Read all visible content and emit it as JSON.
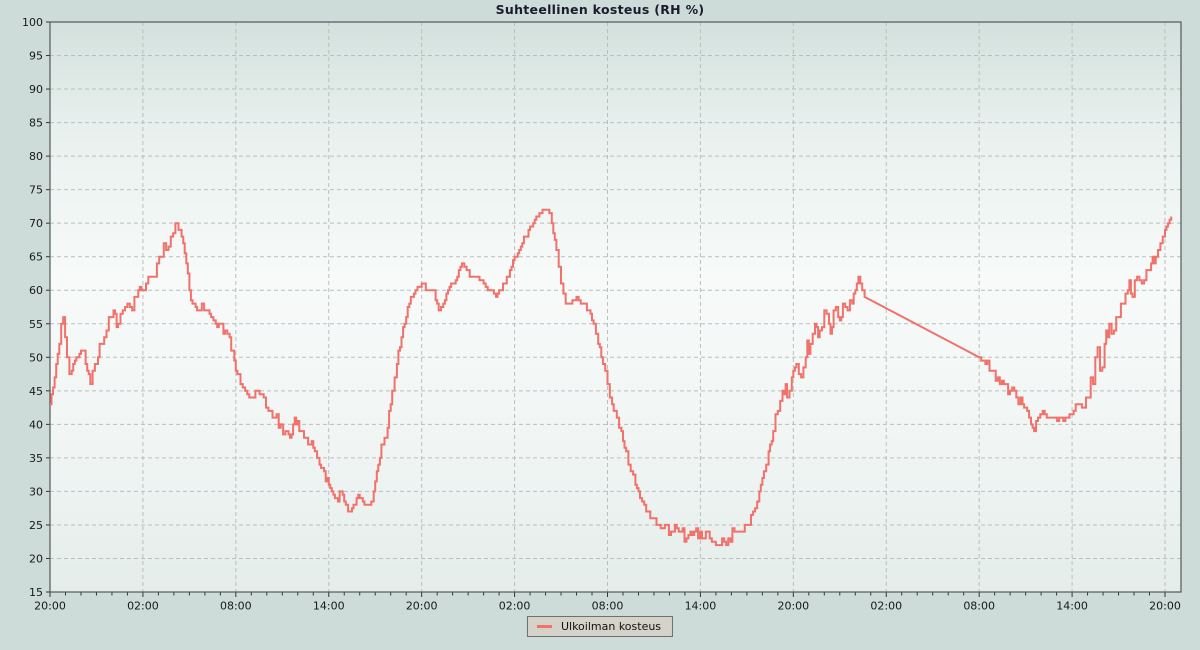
{
  "title": "Suhteellinen kosteus (RH %)",
  "legend": {
    "position": "bottom-center",
    "items": [
      {
        "label": "Ulkoilman kosteus",
        "color": "#f1716b"
      }
    ]
  },
  "colors": {
    "page_background": "#cddcd8",
    "plot_gradient_top": "#d3e1dd",
    "plot_gradient_middle": "#f7faf9",
    "plot_gradient_bottom": "#e4edea",
    "grid": "#b9bfbc",
    "plot_border": "#55565a",
    "tick": "#333333",
    "tick_text": "#17181c",
    "series_line": "#f1716b",
    "title_text": "#1b1b2f",
    "legend_background": "#d5d2ca"
  },
  "chart_data": {
    "type": "line",
    "title": "Suhteellinen kosteus (RH %)",
    "grid": true,
    "legend_position": "bottom-center",
    "x_axis": {
      "start_label": "20:00",
      "span_hours": 72,
      "major_tick_interval_hours": 6,
      "minor_tick_interval_hours": 1,
      "tick_labels": [
        "20:00",
        "02:00",
        "08:00",
        "14:00",
        "20:00",
        "02:00",
        "08:00",
        "14:00",
        "20:00",
        "02:00",
        "08:00",
        "14:00",
        "20:00"
      ]
    },
    "y_axis": {
      "min": 15,
      "max": 100,
      "tick_step": 5
    },
    "points_format": "[hours_from_start_20:00, rh_percent, estimated_noise_band]",
    "gap_segments": [
      [
        52.6,
        60.0
      ]
    ],
    "series": [
      {
        "name": "Ulkoilman kosteus",
        "color": "#f1716b",
        "points": [
          [
            0,
            43,
            0.3
          ],
          [
            0.3,
            47,
            1
          ],
          [
            0.6,
            52,
            1.5
          ],
          [
            0.85,
            56,
            1
          ],
          [
            1.1,
            50,
            1.5
          ],
          [
            1.4,
            48,
            1.5
          ],
          [
            1.7,
            50,
            1.5
          ],
          [
            2,
            51,
            1.5
          ],
          [
            2.3,
            49,
            1.5
          ],
          [
            2.6,
            46,
            1
          ],
          [
            2.9,
            49,
            1.5
          ],
          [
            3.2,
            52,
            1.5
          ],
          [
            3.5,
            53,
            1.5
          ],
          [
            3.8,
            56,
            1.5
          ],
          [
            4.1,
            57,
            2
          ],
          [
            4.4,
            55,
            1.5
          ],
          [
            4.7,
            57,
            1.5
          ],
          [
            5,
            58,
            1.5
          ],
          [
            5.3,
            57,
            1.5
          ],
          [
            5.6,
            59,
            1.5
          ],
          [
            5.9,
            60,
            1.2
          ],
          [
            6.2,
            61,
            1.5
          ],
          [
            6.5,
            62,
            1.5
          ],
          [
            6.9,
            64,
            1.5
          ],
          [
            7.2,
            65,
            1.5
          ],
          [
            7.5,
            66,
            1.5
          ],
          [
            7.8,
            68,
            1
          ],
          [
            8.1,
            70,
            0.6
          ],
          [
            8.4,
            69,
            0.8
          ],
          [
            8.6,
            67,
            0.8
          ],
          [
            8.8,
            64,
            0.6
          ],
          [
            9,
            60,
            0.5
          ],
          [
            9.2,
            58,
            0.5
          ],
          [
            9.5,
            57,
            0.5
          ],
          [
            9.8,
            58,
            0.5
          ],
          [
            10.1,
            57,
            0.6
          ],
          [
            10.4,
            56,
            0.8
          ],
          [
            10.7,
            55,
            0.8
          ],
          [
            11,
            55,
            0.8
          ],
          [
            11.3,
            54,
            0.8
          ],
          [
            11.6,
            53,
            0.8
          ],
          [
            11.8,
            51,
            1
          ],
          [
            12,
            48,
            1
          ],
          [
            12.3,
            46,
            0.8
          ],
          [
            12.6,
            45,
            0.8
          ],
          [
            13,
            44,
            0.6
          ],
          [
            13.4,
            45,
            0.6
          ],
          [
            13.8,
            44,
            0.6
          ],
          [
            14.1,
            42,
            0.8
          ],
          [
            14.5,
            41,
            1
          ],
          [
            14.9,
            40,
            1
          ],
          [
            15.2,
            39,
            1
          ],
          [
            15.5,
            38,
            0.8
          ],
          [
            15.8,
            41,
            0.5
          ],
          [
            16.1,
            39,
            0.8
          ],
          [
            16.4,
            38,
            0.8
          ],
          [
            16.8,
            37,
            0.8
          ],
          [
            17.1,
            36,
            0.8
          ],
          [
            17.4,
            34,
            0.8
          ],
          [
            17.7,
            33,
            0.8
          ],
          [
            18,
            31,
            0.6
          ],
          [
            18.2,
            30,
            0.5
          ],
          [
            18.5,
            29,
            0.8
          ],
          [
            18.8,
            30,
            0.8
          ],
          [
            19.1,
            28,
            0.8
          ],
          [
            19.4,
            27,
            0.6
          ],
          [
            19.7,
            28,
            0.8
          ],
          [
            20,
            29,
            1
          ],
          [
            20.3,
            28,
            0.8
          ],
          [
            20.6,
            28,
            0.6
          ],
          [
            20.9,
            30,
            0.5
          ],
          [
            21.1,
            33,
            0.5
          ],
          [
            21.3,
            35,
            0.6
          ],
          [
            21.5,
            37,
            1
          ],
          [
            21.7,
            38,
            1.2
          ],
          [
            21.9,
            42,
            0.8
          ],
          [
            22.1,
            45,
            0.8
          ],
          [
            22.4,
            49,
            0.8
          ],
          [
            22.7,
            53,
            0.8
          ],
          [
            23,
            56,
            0.8
          ],
          [
            23.3,
            59,
            0.6
          ],
          [
            23.6,
            60,
            0.5
          ],
          [
            24,
            61,
            0.5
          ],
          [
            24.4,
            60,
            0.5
          ],
          [
            24.8,
            60,
            0.5
          ],
          [
            25.1,
            57,
            0.5
          ],
          [
            25.4,
            58,
            0.5
          ],
          [
            25.7,
            60,
            0.5
          ],
          [
            26,
            61,
            0.4
          ],
          [
            26.3,
            62,
            0.4
          ],
          [
            26.6,
            64,
            0.4
          ],
          [
            26.9,
            63,
            0.4
          ],
          [
            27.2,
            62,
            0.4
          ],
          [
            27.6,
            62,
            0.4
          ],
          [
            28,
            61,
            0.4
          ],
          [
            28.4,
            60,
            0.4
          ],
          [
            28.8,
            59,
            0.4
          ],
          [
            29.1,
            60,
            0.4
          ],
          [
            29.4,
            61,
            0.4
          ],
          [
            29.7,
            63,
            0.4
          ],
          [
            30,
            65,
            0.4
          ],
          [
            30.3,
            66,
            0.4
          ],
          [
            30.6,
            68,
            0.4
          ],
          [
            30.9,
            69,
            0.4
          ],
          [
            31.2,
            70,
            0.3
          ],
          [
            31.5,
            71,
            0.3
          ],
          [
            31.8,
            72,
            0.3
          ],
          [
            32.1,
            72,
            0.3
          ],
          [
            32.4,
            70,
            0.3
          ],
          [
            32.7,
            66,
            0.3
          ],
          [
            33,
            61,
            0.3
          ],
          [
            33.3,
            58,
            0.4
          ],
          [
            33.6,
            58,
            0.4
          ],
          [
            34,
            59,
            0.4
          ],
          [
            34.4,
            58,
            0.4
          ],
          [
            34.8,
            57,
            0.4
          ],
          [
            35.1,
            55,
            0.4
          ],
          [
            35.4,
            52,
            0.5
          ],
          [
            35.7,
            49,
            0.5
          ],
          [
            36,
            46,
            0.5
          ],
          [
            36.3,
            43,
            0.5
          ],
          [
            36.6,
            41,
            0.6
          ],
          [
            36.9,
            39,
            0.8
          ],
          [
            37.2,
            36,
            0.8
          ],
          [
            37.5,
            33,
            0.8
          ],
          [
            37.8,
            31,
            0.8
          ],
          [
            38.1,
            29,
            0.8
          ],
          [
            38.5,
            27,
            0.8
          ],
          [
            38.9,
            26,
            0.8
          ],
          [
            39.3,
            25,
            0.8
          ],
          [
            39.7,
            25,
            0.8
          ],
          [
            40.1,
            24,
            0.8
          ],
          [
            40.6,
            24,
            1
          ],
          [
            41.1,
            23,
            1
          ],
          [
            41.6,
            24,
            1
          ],
          [
            42.1,
            23,
            1
          ],
          [
            42.6,
            23,
            1
          ],
          [
            43,
            22,
            0.8
          ],
          [
            43.4,
            23,
            1
          ],
          [
            43.8,
            23,
            1
          ],
          [
            44.2,
            24,
            0.8
          ],
          [
            44.6,
            24,
            0.8
          ],
          [
            45,
            25,
            0.6
          ],
          [
            45.4,
            27,
            0.6
          ],
          [
            45.8,
            30,
            0.6
          ],
          [
            46.1,
            33,
            0.8
          ],
          [
            46.4,
            36,
            0.8
          ],
          [
            46.7,
            39,
            1
          ],
          [
            47,
            42,
            1.2
          ],
          [
            47.3,
            45,
            1.5
          ],
          [
            47.6,
            44,
            1.5
          ],
          [
            47.9,
            47,
            1.5
          ],
          [
            48.2,
            49,
            1.5
          ],
          [
            48.5,
            47,
            1.5
          ],
          [
            48.8,
            50,
            1.8
          ],
          [
            49.1,
            52,
            1.8
          ],
          [
            49.4,
            55,
            2
          ],
          [
            49.7,
            54,
            2
          ],
          [
            50,
            57,
            2
          ],
          [
            50.3,
            55,
            2.2
          ],
          [
            50.6,
            57,
            2.2
          ],
          [
            50.9,
            56,
            2.2
          ],
          [
            51.2,
            58,
            1.8
          ],
          [
            51.5,
            57,
            1.8
          ],
          [
            51.8,
            58,
            1.5
          ],
          [
            52,
            60,
            1
          ],
          [
            52.2,
            62,
            0.6
          ],
          [
            52.45,
            60,
            0.5
          ],
          [
            52.6,
            59,
            0.2
          ],
          [
            60,
            50,
            0.2
          ],
          [
            60.4,
            49,
            1
          ],
          [
            60.8,
            48,
            1
          ],
          [
            61.2,
            47,
            1
          ],
          [
            61.6,
            46,
            1
          ],
          [
            62,
            45,
            0.8
          ],
          [
            62.4,
            44,
            0.8
          ],
          [
            62.8,
            43,
            0.8
          ],
          [
            63.1,
            42,
            0.6
          ],
          [
            63.35,
            40,
            0.4
          ],
          [
            63.55,
            39,
            0.3
          ],
          [
            63.8,
            41,
            0.5
          ],
          [
            64.1,
            42,
            0.5
          ],
          [
            64.5,
            41,
            0.5
          ],
          [
            64.9,
            41,
            0.5
          ],
          [
            65.3,
            41,
            0.5
          ],
          [
            65.7,
            41,
            0.5
          ],
          [
            66.1,
            42,
            0.5
          ],
          [
            66.5,
            43,
            0.8
          ],
          [
            66.9,
            44,
            1.5
          ],
          [
            67.2,
            47,
            2.5
          ],
          [
            67.5,
            50,
            3
          ],
          [
            67.8,
            48,
            3
          ],
          [
            68.1,
            52,
            3
          ],
          [
            68.4,
            55,
            2.5
          ],
          [
            68.7,
            54,
            2.5
          ],
          [
            69,
            56,
            2.5
          ],
          [
            69.3,
            58,
            2.2
          ],
          [
            69.6,
            60,
            2
          ],
          [
            69.9,
            59,
            2
          ],
          [
            70.2,
            62,
            1.5
          ],
          [
            70.5,
            61,
            1.5
          ],
          [
            70.8,
            63,
            1.5
          ],
          [
            71.1,
            64,
            1.2
          ],
          [
            71.4,
            65,
            1
          ],
          [
            71.7,
            67,
            0.8
          ],
          [
            72,
            69,
            0.5
          ],
          [
            72.2,
            70,
            0.3
          ],
          [
            72.4,
            71,
            0.2
          ]
        ]
      }
    ]
  }
}
